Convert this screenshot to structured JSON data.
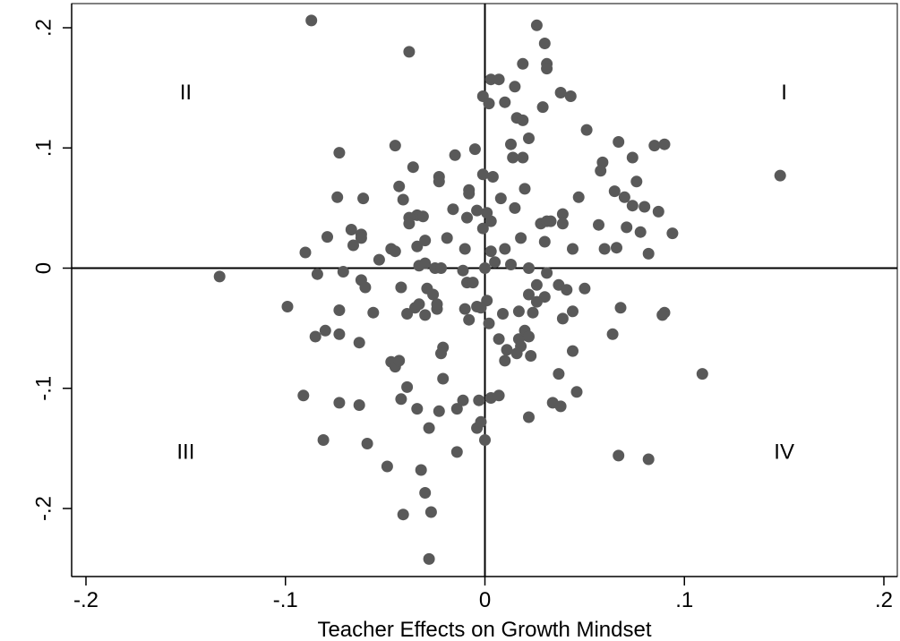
{
  "chart_data": {
    "type": "scatter",
    "title": "",
    "xlabel": "Teacher Effects on Growth Mindset",
    "ylabel": "",
    "xlim": [
      -0.2,
      0.2
    ],
    "ylim": [
      -0.24,
      0.2
    ],
    "x_ticks": [
      -0.2,
      -0.1,
      0,
      0.1,
      0.2
    ],
    "x_tick_labels": [
      "-.2",
      "-.1",
      "0",
      ".1",
      ".2"
    ],
    "y_ticks": [
      -0.2,
      -0.1,
      0,
      0.1,
      0.2
    ],
    "y_tick_labels": [
      "-.2",
      "-.1",
      "0",
      ".1",
      ".2"
    ],
    "grid": false,
    "reference_lines": {
      "x": 0,
      "y": 0
    },
    "marker_color": "#595959",
    "quadrant_labels": [
      {
        "text": "I",
        "x": 0.15,
        "y": 0.147
      },
      {
        "text": "II",
        "x": -0.15,
        "y": 0.147
      },
      {
        "text": "III",
        "x": -0.15,
        "y": -0.152
      },
      {
        "text": "IV",
        "x": 0.15,
        "y": -0.152
      }
    ],
    "points": [
      [
        -0.087,
        0.206
      ],
      [
        -0.038,
        0.18
      ],
      [
        0.026,
        0.202
      ],
      [
        0.03,
        0.187
      ],
      [
        0.031,
        0.17
      ],
      [
        0.031,
        0.166
      ],
      [
        0.019,
        0.17
      ],
      [
        0.003,
        0.157
      ],
      [
        0.007,
        0.157
      ],
      [
        0.015,
        0.151
      ],
      [
        -0.001,
        0.143
      ],
      [
        0.002,
        0.137
      ],
      [
        0.01,
        0.138
      ],
      [
        0.038,
        0.146
      ],
      [
        0.043,
        0.143
      ],
      [
        0.029,
        0.134
      ],
      [
        0.016,
        0.125
      ],
      [
        0.019,
        0.123
      ],
      [
        0.051,
        0.115
      ],
      [
        0.022,
        0.108
      ],
      [
        0.013,
        0.103
      ],
      [
        0.019,
        0.092
      ],
      [
        0.014,
        0.092
      ],
      [
        -0.045,
        0.102
      ],
      [
        -0.073,
        0.096
      ],
      [
        -0.015,
        0.094
      ],
      [
        -0.005,
        0.099
      ],
      [
        0.067,
        0.105
      ],
      [
        0.085,
        0.102
      ],
      [
        0.09,
        0.103
      ],
      [
        0.074,
        0.092
      ],
      [
        0.059,
        0.088
      ],
      [
        0.058,
        0.081
      ],
      [
        0.148,
        0.077
      ],
      [
        -0.036,
        0.084
      ],
      [
        -0.023,
        0.076
      ],
      [
        -0.023,
        0.072
      ],
      [
        -0.001,
        0.078
      ],
      [
        0.004,
        0.076
      ],
      [
        0.076,
        0.072
      ],
      [
        -0.043,
        0.068
      ],
      [
        -0.008,
        0.065
      ],
      [
        -0.008,
        0.062
      ],
      [
        0.008,
        0.058
      ],
      [
        0.02,
        0.066
      ],
      [
        0.047,
        0.059
      ],
      [
        0.065,
        0.064
      ],
      [
        0.07,
        0.059
      ],
      [
        0.074,
        0.052
      ],
      [
        0.08,
        0.051
      ],
      [
        0.087,
        0.047
      ],
      [
        -0.074,
        0.059
      ],
      [
        -0.061,
        0.058
      ],
      [
        -0.041,
        0.057
      ],
      [
        -0.034,
        0.044
      ],
      [
        -0.031,
        0.043
      ],
      [
        -0.038,
        0.042
      ],
      [
        -0.038,
        0.037
      ],
      [
        -0.016,
        0.049
      ],
      [
        -0.009,
        0.042
      ],
      [
        -0.004,
        0.048
      ],
      [
        0.001,
        0.046
      ],
      [
        0.003,
        0.039
      ],
      [
        -0.001,
        0.033
      ],
      [
        0.015,
        0.05
      ],
      [
        0.028,
        0.037
      ],
      [
        0.031,
        0.039
      ],
      [
        0.033,
        0.039
      ],
      [
        0.039,
        0.045
      ],
      [
        0.039,
        0.037
      ],
      [
        0.057,
        0.036
      ],
      [
        0.071,
        0.034
      ],
      [
        0.078,
        0.03
      ],
      [
        0.094,
        0.029
      ],
      [
        -0.067,
        0.032
      ],
      [
        -0.062,
        0.028
      ],
      [
        -0.062,
        0.025
      ],
      [
        -0.079,
        0.026
      ],
      [
        -0.066,
        0.019
      ],
      [
        -0.047,
        0.016
      ],
      [
        -0.045,
        0.014
      ],
      [
        -0.034,
        0.018
      ],
      [
        -0.03,
        0.023
      ],
      [
        -0.019,
        0.025
      ],
      [
        -0.01,
        0.016
      ],
      [
        0.003,
        0.014
      ],
      [
        0.01,
        0.016
      ],
      [
        0.018,
        0.025
      ],
      [
        0.03,
        0.022
      ],
      [
        0.044,
        0.016
      ],
      [
        0.06,
        0.016
      ],
      [
        0.066,
        0.017
      ],
      [
        0.082,
        0.012
      ],
      [
        -0.09,
        0.013
      ],
      [
        -0.053,
        0.007
      ],
      [
        -0.133,
        -0.007
      ],
      [
        -0.084,
        -0.005
      ],
      [
        -0.071,
        -0.003
      ],
      [
        -0.033,
        0.002
      ],
      [
        -0.03,
        0.004
      ],
      [
        -0.025,
        0.0
      ],
      [
        -0.022,
        0.0
      ],
      [
        -0.011,
        -0.002
      ],
      [
        0.0,
        0.0
      ],
      [
        0.005,
        0.005
      ],
      [
        0.013,
        0.003
      ],
      [
        0.022,
        0.0
      ],
      [
        0.031,
        -0.004
      ],
      [
        -0.062,
        -0.01
      ],
      [
        -0.06,
        -0.016
      ],
      [
        -0.042,
        -0.016
      ],
      [
        -0.029,
        -0.017
      ],
      [
        -0.026,
        -0.022
      ],
      [
        -0.009,
        -0.012
      ],
      [
        -0.006,
        -0.012
      ],
      [
        0.026,
        -0.014
      ],
      [
        0.037,
        -0.014
      ],
      [
        0.041,
        -0.018
      ],
      [
        0.05,
        -0.017
      ],
      [
        0.022,
        -0.022
      ],
      [
        0.03,
        -0.024
      ],
      [
        0.001,
        -0.027
      ],
      [
        -0.099,
        -0.032
      ],
      [
        -0.073,
        -0.035
      ],
      [
        -0.056,
        -0.037
      ],
      [
        -0.039,
        -0.038
      ],
      [
        -0.035,
        -0.033
      ],
      [
        -0.033,
        -0.03
      ],
      [
        -0.03,
        -0.039
      ],
      [
        -0.024,
        -0.034
      ],
      [
        -0.024,
        -0.03
      ],
      [
        -0.01,
        -0.034
      ],
      [
        -0.004,
        -0.032
      ],
      [
        -0.002,
        -0.033
      ],
      [
        0.009,
        -0.038
      ],
      [
        0.017,
        -0.036
      ],
      [
        0.024,
        -0.037
      ],
      [
        0.026,
        -0.028
      ],
      [
        0.039,
        -0.042
      ],
      [
        0.044,
        -0.036
      ],
      [
        0.068,
        -0.033
      ],
      [
        0.09,
        -0.037
      ],
      [
        0.089,
        -0.039
      ],
      [
        -0.085,
        -0.057
      ],
      [
        -0.08,
        -0.052
      ],
      [
        -0.073,
        -0.055
      ],
      [
        -0.063,
        -0.062
      ],
      [
        -0.008,
        -0.043
      ],
      [
        0.002,
        -0.046
      ],
      [
        0.007,
        -0.059
      ],
      [
        0.011,
        -0.068
      ],
      [
        0.017,
        -0.059
      ],
      [
        0.018,
        -0.065
      ],
      [
        0.016,
        -0.071
      ],
      [
        0.02,
        -0.052
      ],
      [
        0.022,
        -0.057
      ],
      [
        0.064,
        -0.055
      ],
      [
        -0.047,
        -0.078
      ],
      [
        -0.045,
        -0.082
      ],
      [
        -0.043,
        -0.077
      ],
      [
        -0.021,
        -0.066
      ],
      [
        -0.022,
        -0.071
      ],
      [
        -0.021,
        -0.092
      ],
      [
        0.01,
        -0.077
      ],
      [
        0.023,
        -0.073
      ],
      [
        0.044,
        -0.069
      ],
      [
        0.037,
        -0.088
      ],
      [
        0.109,
        -0.088
      ],
      [
        -0.039,
        -0.099
      ],
      [
        -0.091,
        -0.106
      ],
      [
        -0.073,
        -0.112
      ],
      [
        -0.063,
        -0.114
      ],
      [
        -0.042,
        -0.109
      ],
      [
        -0.034,
        -0.117
      ],
      [
        -0.023,
        -0.119
      ],
      [
        -0.014,
        -0.117
      ],
      [
        -0.011,
        -0.11
      ],
      [
        -0.003,
        -0.11
      ],
      [
        0.003,
        -0.108
      ],
      [
        0.007,
        -0.106
      ],
      [
        0.034,
        -0.112
      ],
      [
        0.038,
        -0.115
      ],
      [
        0.046,
        -0.103
      ],
      [
        -0.081,
        -0.143
      ],
      [
        -0.059,
        -0.146
      ],
      [
        -0.028,
        -0.133
      ],
      [
        -0.004,
        -0.133
      ],
      [
        -0.002,
        -0.128
      ],
      [
        0.0,
        -0.143
      ],
      [
        -0.014,
        -0.153
      ],
      [
        0.022,
        -0.124
      ],
      [
        0.067,
        -0.156
      ],
      [
        0.082,
        -0.159
      ],
      [
        -0.049,
        -0.165
      ],
      [
        -0.032,
        -0.168
      ],
      [
        -0.03,
        -0.187
      ],
      [
        -0.041,
        -0.205
      ],
      [
        -0.027,
        -0.203
      ],
      [
        -0.028,
        -0.242
      ]
    ]
  }
}
